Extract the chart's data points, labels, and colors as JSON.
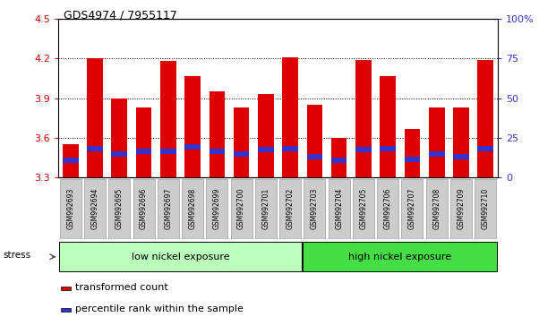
{
  "title": "GDS4974 / 7955117",
  "samples": [
    "GSM992693",
    "GSM992694",
    "GSM992695",
    "GSM992696",
    "GSM992697",
    "GSM992698",
    "GSM992699",
    "GSM992700",
    "GSM992701",
    "GSM992702",
    "GSM992703",
    "GSM992704",
    "GSM992705",
    "GSM992706",
    "GSM992707",
    "GSM992708",
    "GSM992709",
    "GSM992710"
  ],
  "red_values": [
    3.55,
    4.2,
    3.9,
    3.83,
    4.18,
    4.07,
    3.95,
    3.83,
    3.93,
    4.21,
    3.85,
    3.6,
    4.19,
    4.07,
    3.67,
    3.83,
    3.83,
    4.19
  ],
  "blue_values": [
    3.43,
    3.52,
    3.48,
    3.5,
    3.5,
    3.53,
    3.5,
    3.48,
    3.51,
    3.52,
    3.46,
    3.43,
    3.51,
    3.52,
    3.44,
    3.48,
    3.46,
    3.52
  ],
  "y_min": 3.3,
  "y_max": 4.5,
  "y_ticks": [
    3.3,
    3.6,
    3.9,
    4.2,
    4.5
  ],
  "y2_ticks": [
    0,
    25,
    50,
    75,
    100
  ],
  "y2_tick_labels": [
    "0",
    "25",
    "50",
    "75",
    "100%"
  ],
  "red_color": "#dd0000",
  "blue_color": "#3333cc",
  "bar_width": 0.65,
  "low_nickel_count": 10,
  "low_nickel_label": "low nickel exposure",
  "high_nickel_label": "high nickel exposure",
  "low_nickel_color": "#bbffbb",
  "high_nickel_color": "#44dd44",
  "stress_label": "stress",
  "legend_red": "transformed count",
  "legend_blue": "percentile rank within the sample",
  "tick_color_left": "#cc0000",
  "tick_color_right": "#3333cc",
  "xtick_bg": "#cccccc",
  "gridline_ticks": [
    3.6,
    3.9,
    4.2
  ]
}
